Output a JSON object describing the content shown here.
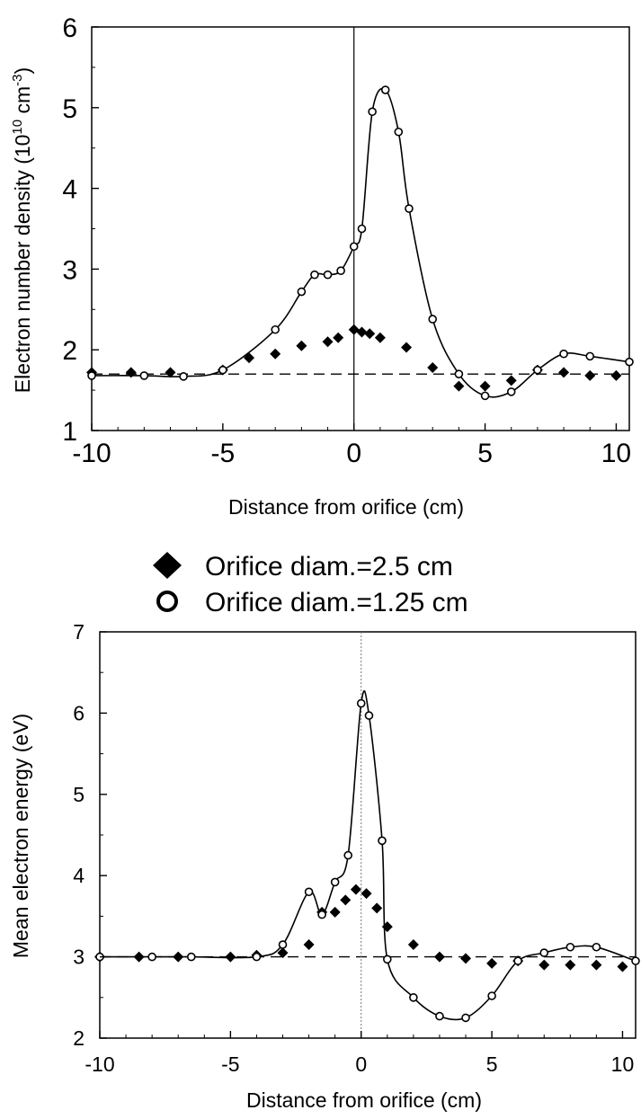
{
  "legend": {
    "items": [
      {
        "label": "Orifice diam.=2.5 cm",
        "marker": "diamond"
      },
      {
        "label": "Orifice diam.=1.25 cm",
        "marker": "circle"
      }
    ]
  },
  "chart_data": [
    {
      "type": "scatter",
      "title": "",
      "xlabel": "Distance from orifice (cm)",
      "ylabel_main": "Electron number density (10",
      "ylabel_exp1": "10",
      "ylabel_unit": " cm",
      "ylabel_exp2": "-3",
      "ylabel_close": ")",
      "xlim": [
        -10,
        10.5
      ],
      "ylim": [
        1,
        6
      ],
      "xticks": [
        -10,
        -5,
        0,
        5,
        10
      ],
      "xtick_labels": [
        "-10",
        "-5",
        "0",
        "5",
        "10"
      ],
      "yticks": [
        1,
        2,
        3,
        4,
        5,
        6
      ],
      "ytick_labels": [
        "1",
        "2",
        "3",
        "4",
        "5",
        "6"
      ],
      "reference_line_y": 1.7,
      "vertical_line_x": 0,
      "series": [
        {
          "name": "Orifice diam.=2.5 cm",
          "marker": "diamond",
          "curve": false,
          "x": [
            -10,
            -8.5,
            -7,
            -5,
            -4,
            -3,
            -2,
            -1,
            -0.6,
            0,
            0.3,
            0.6,
            1,
            2,
            3,
            4,
            5,
            6,
            7,
            8,
            9,
            10
          ],
          "y": [
            1.72,
            1.72,
            1.72,
            1.75,
            1.9,
            1.95,
            2.05,
            2.1,
            2.15,
            2.25,
            2.22,
            2.2,
            2.15,
            2.03,
            1.78,
            1.55,
            1.55,
            1.62,
            1.75,
            1.72,
            1.68,
            1.68
          ]
        },
        {
          "name": "Orifice diam.=1.25 cm",
          "marker": "circle",
          "curve": true,
          "x": [
            -10,
            -8,
            -6.5,
            -5,
            -3,
            -2,
            -1.5,
            -1,
            -0.5,
            0,
            0.3,
            0.7,
            1.2,
            1.7,
            2.1,
            3,
            4,
            5,
            6,
            7,
            8,
            9,
            10.5
          ],
          "y": [
            1.68,
            1.68,
            1.67,
            1.75,
            2.25,
            2.72,
            2.93,
            2.93,
            2.98,
            3.28,
            3.5,
            4.95,
            5.22,
            4.7,
            3.75,
            2.38,
            1.7,
            1.43,
            1.48,
            1.75,
            1.95,
            1.92,
            1.85
          ]
        }
      ]
    },
    {
      "type": "scatter",
      "title": "",
      "xlabel": "Distance from orifice (cm)",
      "ylabel": "Mean electron energy (eV)",
      "xlim": [
        -10,
        10.5
      ],
      "ylim": [
        2,
        7
      ],
      "xticks": [
        -10,
        -5,
        0,
        5,
        10
      ],
      "xtick_labels": [
        "-10",
        "-5",
        "0",
        "5",
        "10"
      ],
      "yticks": [
        2,
        3,
        4,
        5,
        6,
        7
      ],
      "ytick_labels": [
        "2",
        "3",
        "4",
        "5",
        "6",
        "7"
      ],
      "reference_line_y": 3.0,
      "vertical_line_x": 0,
      "series": [
        {
          "name": "Orifice diam.=2.5 cm",
          "marker": "diamond",
          "curve": false,
          "x": [
            -10,
            -8.5,
            -7,
            -5,
            -4,
            -3,
            -2,
            -1.5,
            -1,
            -0.6,
            -0.2,
            0.2,
            0.6,
            1,
            2,
            3,
            4,
            5,
            6,
            7,
            8,
            9,
            10
          ],
          "y": [
            3.0,
            3.0,
            3.0,
            3.0,
            3.02,
            3.05,
            3.15,
            3.55,
            3.55,
            3.7,
            3.83,
            3.78,
            3.6,
            3.37,
            3.15,
            3.0,
            2.98,
            2.92,
            2.95,
            2.9,
            2.9,
            2.9,
            2.88
          ]
        },
        {
          "name": "Orifice diam.=1.25 cm",
          "marker": "circle",
          "curve": true,
          "x": [
            -10,
            -8,
            -6.5,
            -4,
            -3,
            -2,
            -1.5,
            -1,
            -0.5,
            0,
            0.3,
            0.8,
            1,
            2,
            3,
            4,
            5,
            6,
            7,
            8,
            9,
            10.5
          ],
          "y": [
            3.0,
            3.0,
            3.0,
            3.0,
            3.15,
            3.8,
            3.52,
            3.92,
            4.25,
            6.12,
            5.97,
            4.43,
            2.97,
            2.5,
            2.27,
            2.25,
            2.52,
            2.95,
            3.05,
            3.12,
            3.12,
            2.95
          ]
        }
      ]
    }
  ]
}
